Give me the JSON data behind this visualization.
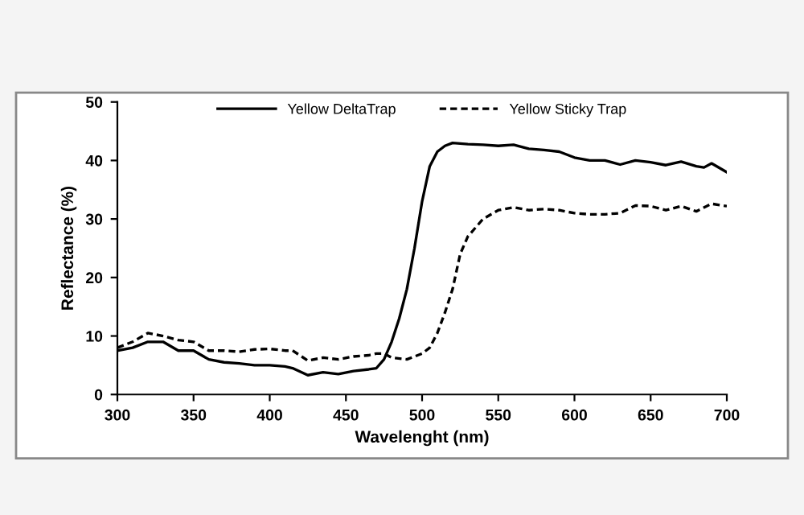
{
  "chart_data": {
    "type": "line",
    "xlabel": "Wavelenght (nm)",
    "ylabel": "Reflectance (%)",
    "xlim": [
      300,
      700
    ],
    "xticks": [
      300,
      350,
      400,
      450,
      500,
      550,
      600,
      650,
      700
    ],
    "ylim": [
      0,
      50
    ],
    "yticks": [
      0,
      10,
      20,
      30,
      40,
      50
    ],
    "grid": false,
    "legend": "top",
    "series": [
      {
        "name": "Yellow DeltaTrap",
        "color": "#000000",
        "line_style": "solid",
        "x": [
          300,
          310,
          320,
          330,
          340,
          350,
          360,
          370,
          380,
          390,
          400,
          410,
          415,
          425,
          435,
          445,
          455,
          465,
          470,
          475,
          480,
          485,
          490,
          495,
          500,
          505,
          510,
          515,
          520,
          530,
          540,
          550,
          560,
          570,
          580,
          590,
          600,
          610,
          620,
          630,
          640,
          650,
          660,
          670,
          680,
          685,
          690,
          700
        ],
        "values": [
          7.5,
          8,
          9,
          9,
          7.5,
          7.5,
          6,
          5.5,
          5.3,
          5,
          5,
          4.8,
          4.5,
          3.3,
          3.8,
          3.5,
          4,
          4.3,
          4.5,
          6,
          9,
          13,
          18,
          25,
          33,
          39,
          41.5,
          42.5,
          43,
          42.8,
          42.7,
          42.5,
          42.7,
          42,
          41.8,
          41.5,
          40.5,
          40,
          40,
          39.3,
          40,
          39.7,
          39.2,
          39.8,
          39,
          38.8,
          39.5,
          38
        ]
      },
      {
        "name": "Yellow Sticky Trap",
        "color": "#000000",
        "line_style": "dashed",
        "x": [
          300,
          310,
          320,
          330,
          340,
          350,
          360,
          370,
          380,
          390,
          400,
          410,
          415,
          425,
          435,
          445,
          455,
          465,
          470,
          475,
          480,
          490,
          500,
          505,
          510,
          515,
          520,
          525,
          530,
          540,
          550,
          560,
          570,
          580,
          590,
          600,
          610,
          620,
          630,
          640,
          650,
          660,
          670,
          680,
          690,
          700
        ],
        "values": [
          8,
          9,
          10.5,
          10,
          9.3,
          9,
          7.5,
          7.5,
          7.3,
          7.7,
          7.8,
          7.5,
          7.5,
          5.8,
          6.3,
          6,
          6.5,
          6.7,
          7,
          7,
          6.3,
          6,
          7,
          8,
          10.5,
          14,
          18,
          24,
          27,
          30,
          31.5,
          32,
          31.5,
          31.7,
          31.5,
          31,
          30.8,
          30.8,
          31,
          32.3,
          32.2,
          31.5,
          32.2,
          31.3,
          32.6,
          32.2
        ]
      }
    ]
  }
}
